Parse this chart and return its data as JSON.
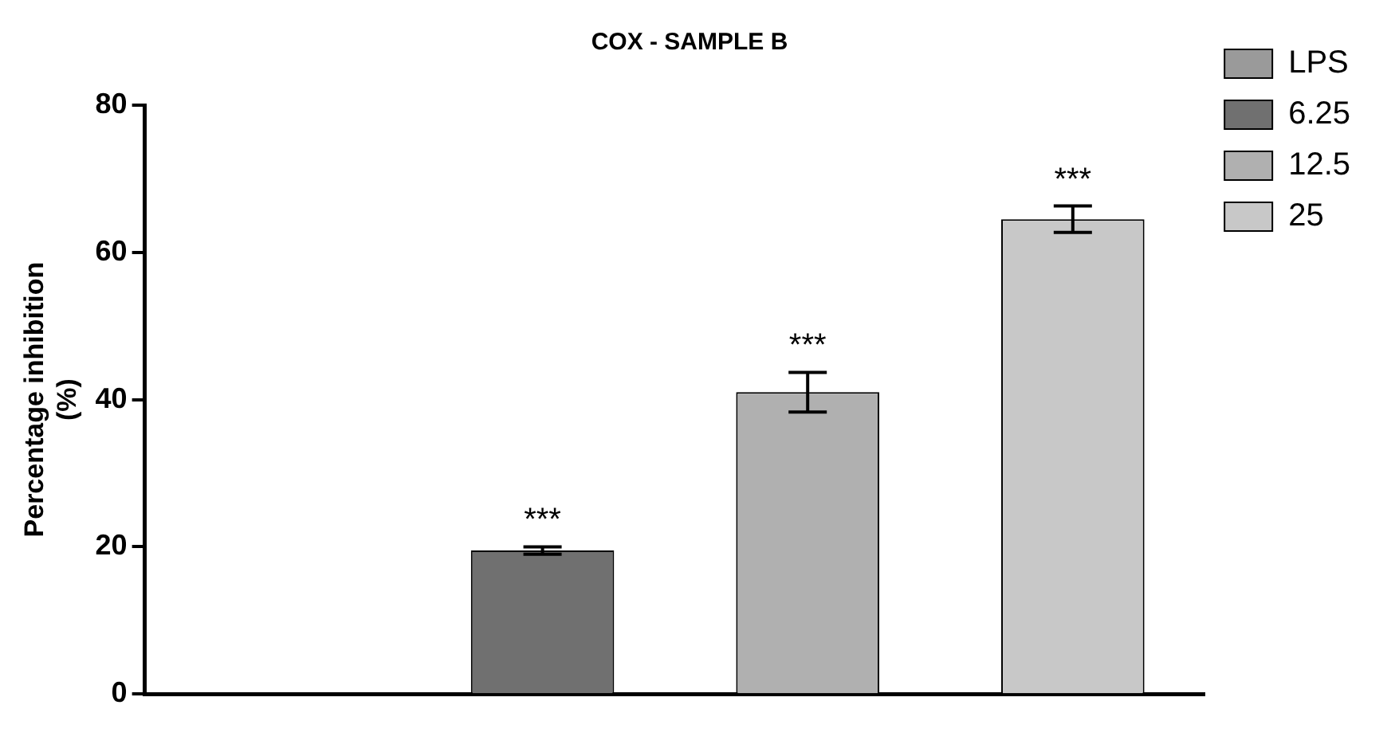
{
  "chart_data": {
    "type": "bar",
    "title": "COX - SAMPLE B",
    "ylabel": "Percentage inhibition (%)",
    "categories": [
      null
    ],
    "series": [
      {
        "name": "LPS",
        "color": "#9a9a9a",
        "values": [
          0
        ]
      },
      {
        "name": "6.25",
        "color": "#707070",
        "values": [
          19.5
        ],
        "errors": [
          0.5
        ],
        "value_labels": [
          "***"
        ]
      },
      {
        "name": "12.5",
        "color": "#b0b0b0",
        "values": [
          41
        ],
        "errors": [
          2.7
        ],
        "value_labels": [
          "***"
        ]
      },
      {
        "name": "25",
        "color": "#c8c8c8",
        "values": [
          64.5
        ],
        "errors": [
          1.8
        ],
        "value_labels": [
          "***"
        ]
      }
    ],
    "ylim": [
      0,
      80
    ],
    "yticks": [
      0,
      20,
      40,
      60,
      80
    ],
    "legend": "right",
    "grid": false
  }
}
